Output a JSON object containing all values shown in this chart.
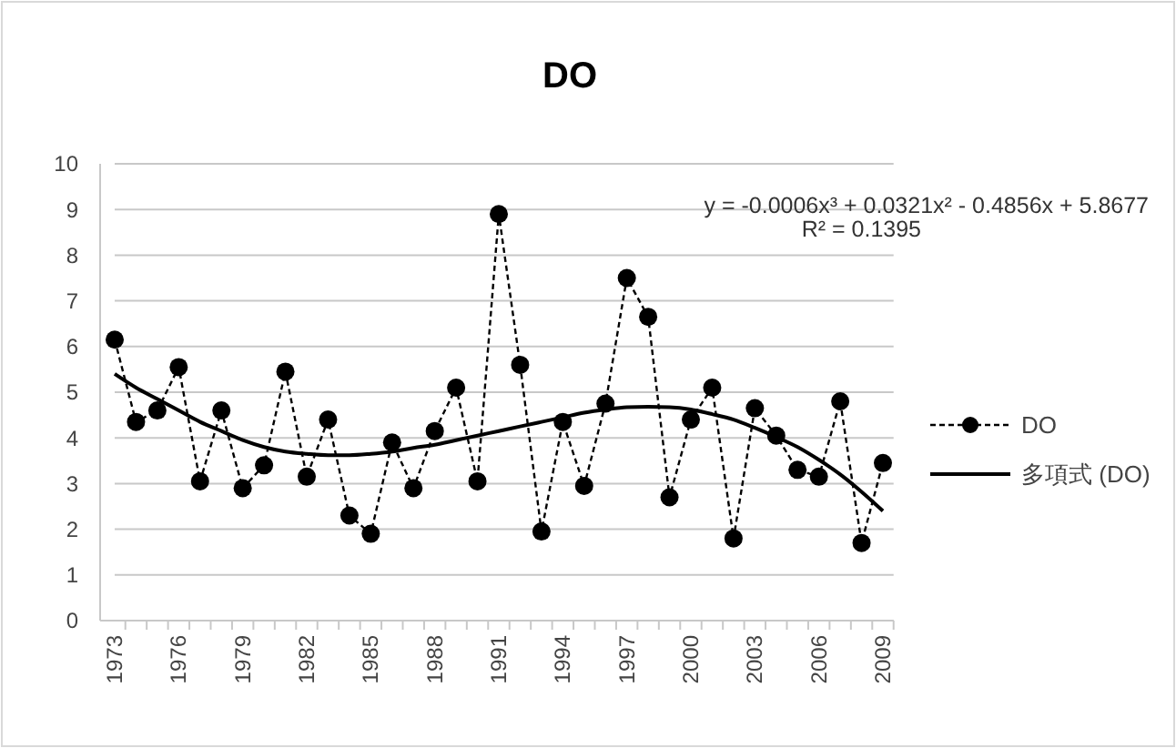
{
  "chart_data": {
    "type": "line",
    "title": "DO",
    "categories": [
      "1973",
      null,
      null,
      "1976",
      null,
      null,
      "1979",
      null,
      null,
      "1982",
      null,
      null,
      "1985",
      null,
      null,
      "1988",
      null,
      null,
      "1991",
      null,
      null,
      "1994",
      null,
      null,
      "1997",
      null,
      null,
      "2000",
      null,
      null,
      "2003",
      null,
      null,
      "2006",
      null,
      null,
      "2009"
    ],
    "series": [
      {
        "name": "DO",
        "color": "#000000",
        "marker": "circle",
        "line_style": "dashed",
        "values": [
          6.15,
          4.35,
          4.6,
          5.55,
          3.05,
          4.6,
          2.9,
          3.4,
          5.45,
          3.15,
          4.4,
          2.3,
          1.9,
          3.9,
          2.9,
          4.15,
          5.1,
          3.05,
          8.9,
          5.6,
          1.95,
          4.35,
          2.95,
          4.75,
          7.5,
          6.65,
          2.7,
          4.4,
          5.1,
          1.8,
          4.65,
          4.05,
          3.3,
          3.15,
          4.8,
          1.7,
          3.45
        ]
      },
      {
        "name": "多項式 (DO)",
        "color": "#000000",
        "marker": "none",
        "line_style": "solid",
        "values": [
          5.4,
          5.1,
          4.85,
          4.6,
          4.35,
          4.15,
          3.95,
          3.8,
          3.7,
          3.65,
          3.62,
          3.62,
          3.65,
          3.7,
          3.78,
          3.85,
          3.95,
          4.05,
          4.15,
          4.25,
          4.35,
          4.45,
          4.55,
          4.62,
          4.67,
          4.68,
          4.67,
          4.62,
          4.52,
          4.4,
          4.22,
          4.02,
          3.8,
          3.52,
          3.2,
          2.82,
          2.4
        ]
      }
    ],
    "ylim": [
      0,
      10
    ],
    "yticks": [
      0,
      1,
      2,
      3,
      4,
      5,
      6,
      7,
      8,
      9,
      10
    ],
    "grid": "y",
    "legend": "right",
    "annotations": [
      "y = -0.0006x³ + 0.0321x² - 0.4856x + 5.8677",
      "R² = 0.1395"
    ]
  }
}
